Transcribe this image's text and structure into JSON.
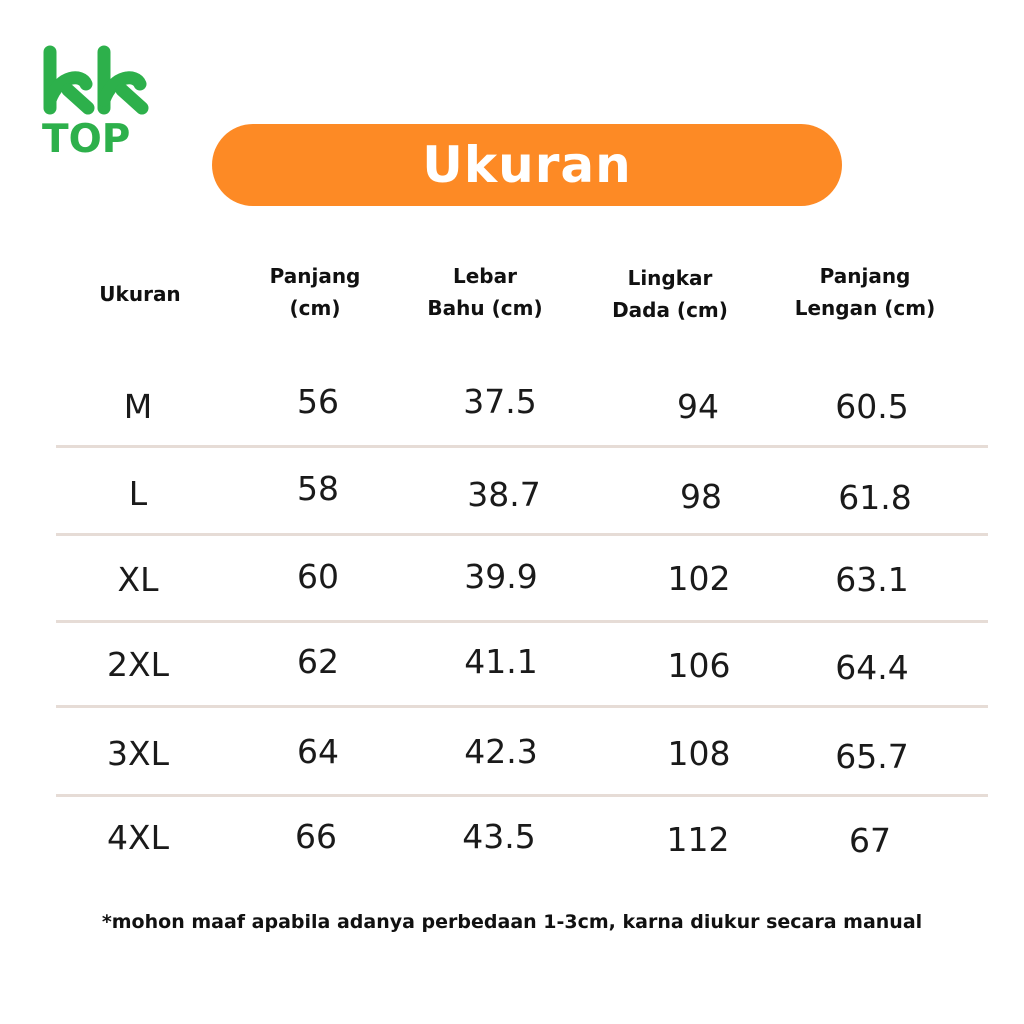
{
  "brand": {
    "logo_text": "TOP",
    "logo_color": "#2db04b"
  },
  "banner": {
    "title": "Ukuran",
    "color": "#fd8a25"
  },
  "table": {
    "headers": [
      "Ukuran",
      "Panjang\n(cm)",
      "Lebar\nBahu (cm)",
      "Lingkar\nDada (cm)",
      "Panjang\nLengan (cm)"
    ],
    "rows": [
      [
        "M",
        "56",
        "37.5",
        "94",
        "60.5"
      ],
      [
        "L",
        "58",
        "38.7",
        "98",
        "61.8"
      ],
      [
        "XL",
        "60",
        "39.9",
        "102",
        "63.1"
      ],
      [
        "2XL",
        "62",
        "41.1",
        "106",
        "64.4"
      ],
      [
        "3XL",
        "64",
        "42.3",
        "108",
        "65.7"
      ],
      [
        "4XL",
        "66",
        "43.5",
        "112",
        "67"
      ]
    ]
  },
  "footnote": "*mohon maaf apabila adanya perbedaan 1-3cm, karna diukur secara manual"
}
